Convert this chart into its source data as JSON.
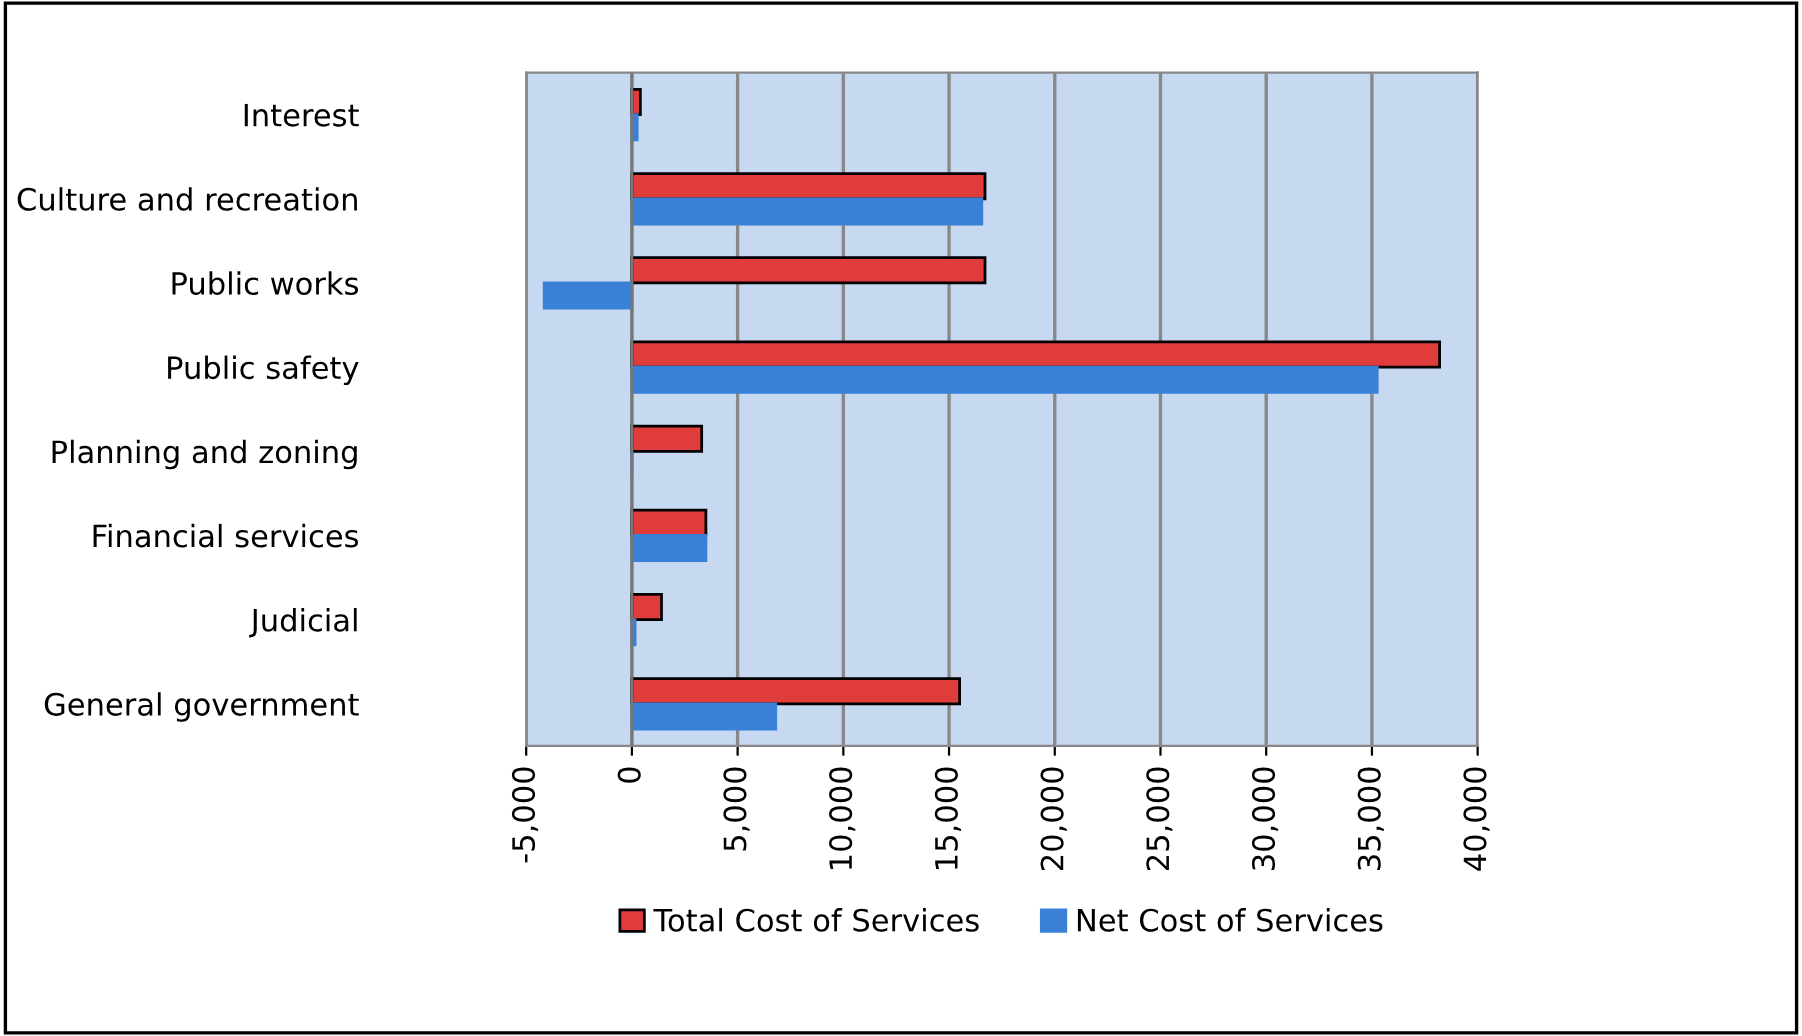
{
  "chart_data": {
    "type": "bar",
    "orientation": "horizontal",
    "categories": [
      "Interest",
      "Culture and recreation",
      "Public works",
      "Public safety",
      "Planning and zoning",
      "Financial services",
      "Judicial",
      "General government"
    ],
    "series": [
      {
        "name": "Total Cost of Services",
        "color": "#e03c3c",
        "values": [
          400,
          16700,
          16700,
          38200,
          3300,
          3500,
          1400,
          15500
        ]
      },
      {
        "name": "Net Cost of Services",
        "color": "#3a80d6",
        "values": [
          250,
          16550,
          -4150,
          35250,
          0,
          3500,
          150,
          6800
        ]
      }
    ],
    "xlim": [
      -5000,
      40000
    ],
    "xticks": [
      {
        "value": -5000,
        "label": "-5,000"
      },
      0,
      {
        "value": 5000,
        "label": "5,000"
      },
      {
        "value": 10000,
        "label": "10,000"
      },
      {
        "value": 15000,
        "label": "15,000"
      },
      {
        "value": 20000,
        "label": "20,000"
      },
      {
        "value": 25000,
        "label": "25,000"
      },
      {
        "value": 30000,
        "label": "30,000"
      },
      {
        "value": 35000,
        "label": "35,000"
      },
      {
        "value": 40000,
        "label": "40,000"
      }
    ],
    "grid": "x",
    "legend": "bottom"
  }
}
